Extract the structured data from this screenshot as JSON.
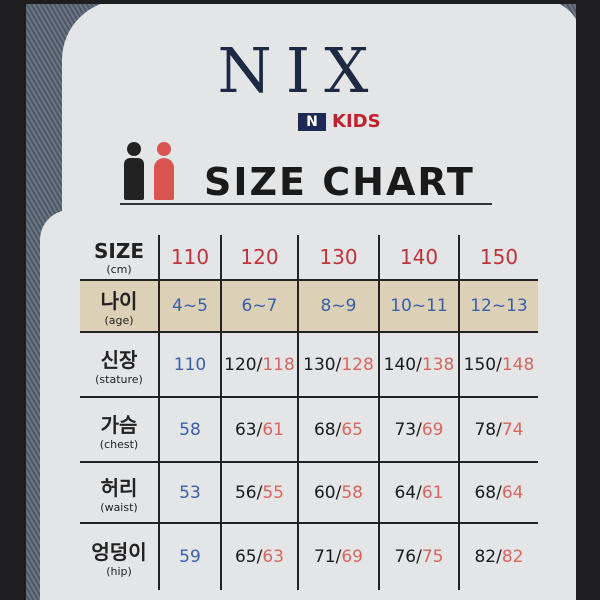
{
  "brand": {
    "name": "NIX",
    "sub_mark": "N",
    "sub_label": "KIDS"
  },
  "title": "SIZE CHART",
  "colors": {
    "navy": "#1e2a44",
    "red": "#c0333a",
    "blue": "#3a5ea8",
    "pink": "#d8665e",
    "age_band": "#dcd0b6"
  },
  "table": {
    "header": {
      "label": "SIZE",
      "unit": "(cm)",
      "sizes": [
        "110",
        "120",
        "130",
        "140",
        "150"
      ]
    },
    "rows": [
      {
        "label": "나이",
        "sub": "(age)",
        "cells": [
          {
            "a": "4~5"
          },
          {
            "a": "6~7"
          },
          {
            "a": "8~9"
          },
          {
            "a": "10~11"
          },
          {
            "a": "12~13"
          }
        ]
      },
      {
        "label": "신장",
        "sub": "(stature)",
        "cells": [
          {
            "a": "110"
          },
          {
            "a": "120",
            "b": "118"
          },
          {
            "a": "130",
            "b": "128"
          },
          {
            "a": "140",
            "b": "138"
          },
          {
            "a": "150",
            "b": "148"
          }
        ]
      },
      {
        "label": "가슴",
        "sub": "(chest)",
        "cells": [
          {
            "a": "58"
          },
          {
            "a": "63",
            "b": "61"
          },
          {
            "a": "68",
            "b": "65"
          },
          {
            "a": "73",
            "b": "69"
          },
          {
            "a": "78",
            "b": "74"
          }
        ]
      },
      {
        "label": "허리",
        "sub": "(waist)",
        "cells": [
          {
            "a": "53"
          },
          {
            "a": "56",
            "b": "55"
          },
          {
            "a": "60",
            "b": "58"
          },
          {
            "a": "64",
            "b": "61"
          },
          {
            "a": "68",
            "b": "64"
          }
        ]
      },
      {
        "label": "엉덩이",
        "sub": "(hip)",
        "cells": [
          {
            "a": "59"
          },
          {
            "a": "65",
            "b": "63"
          },
          {
            "a": "71",
            "b": "69"
          },
          {
            "a": "76",
            "b": "75"
          },
          {
            "a": "82",
            "b": "82"
          }
        ]
      }
    ]
  }
}
